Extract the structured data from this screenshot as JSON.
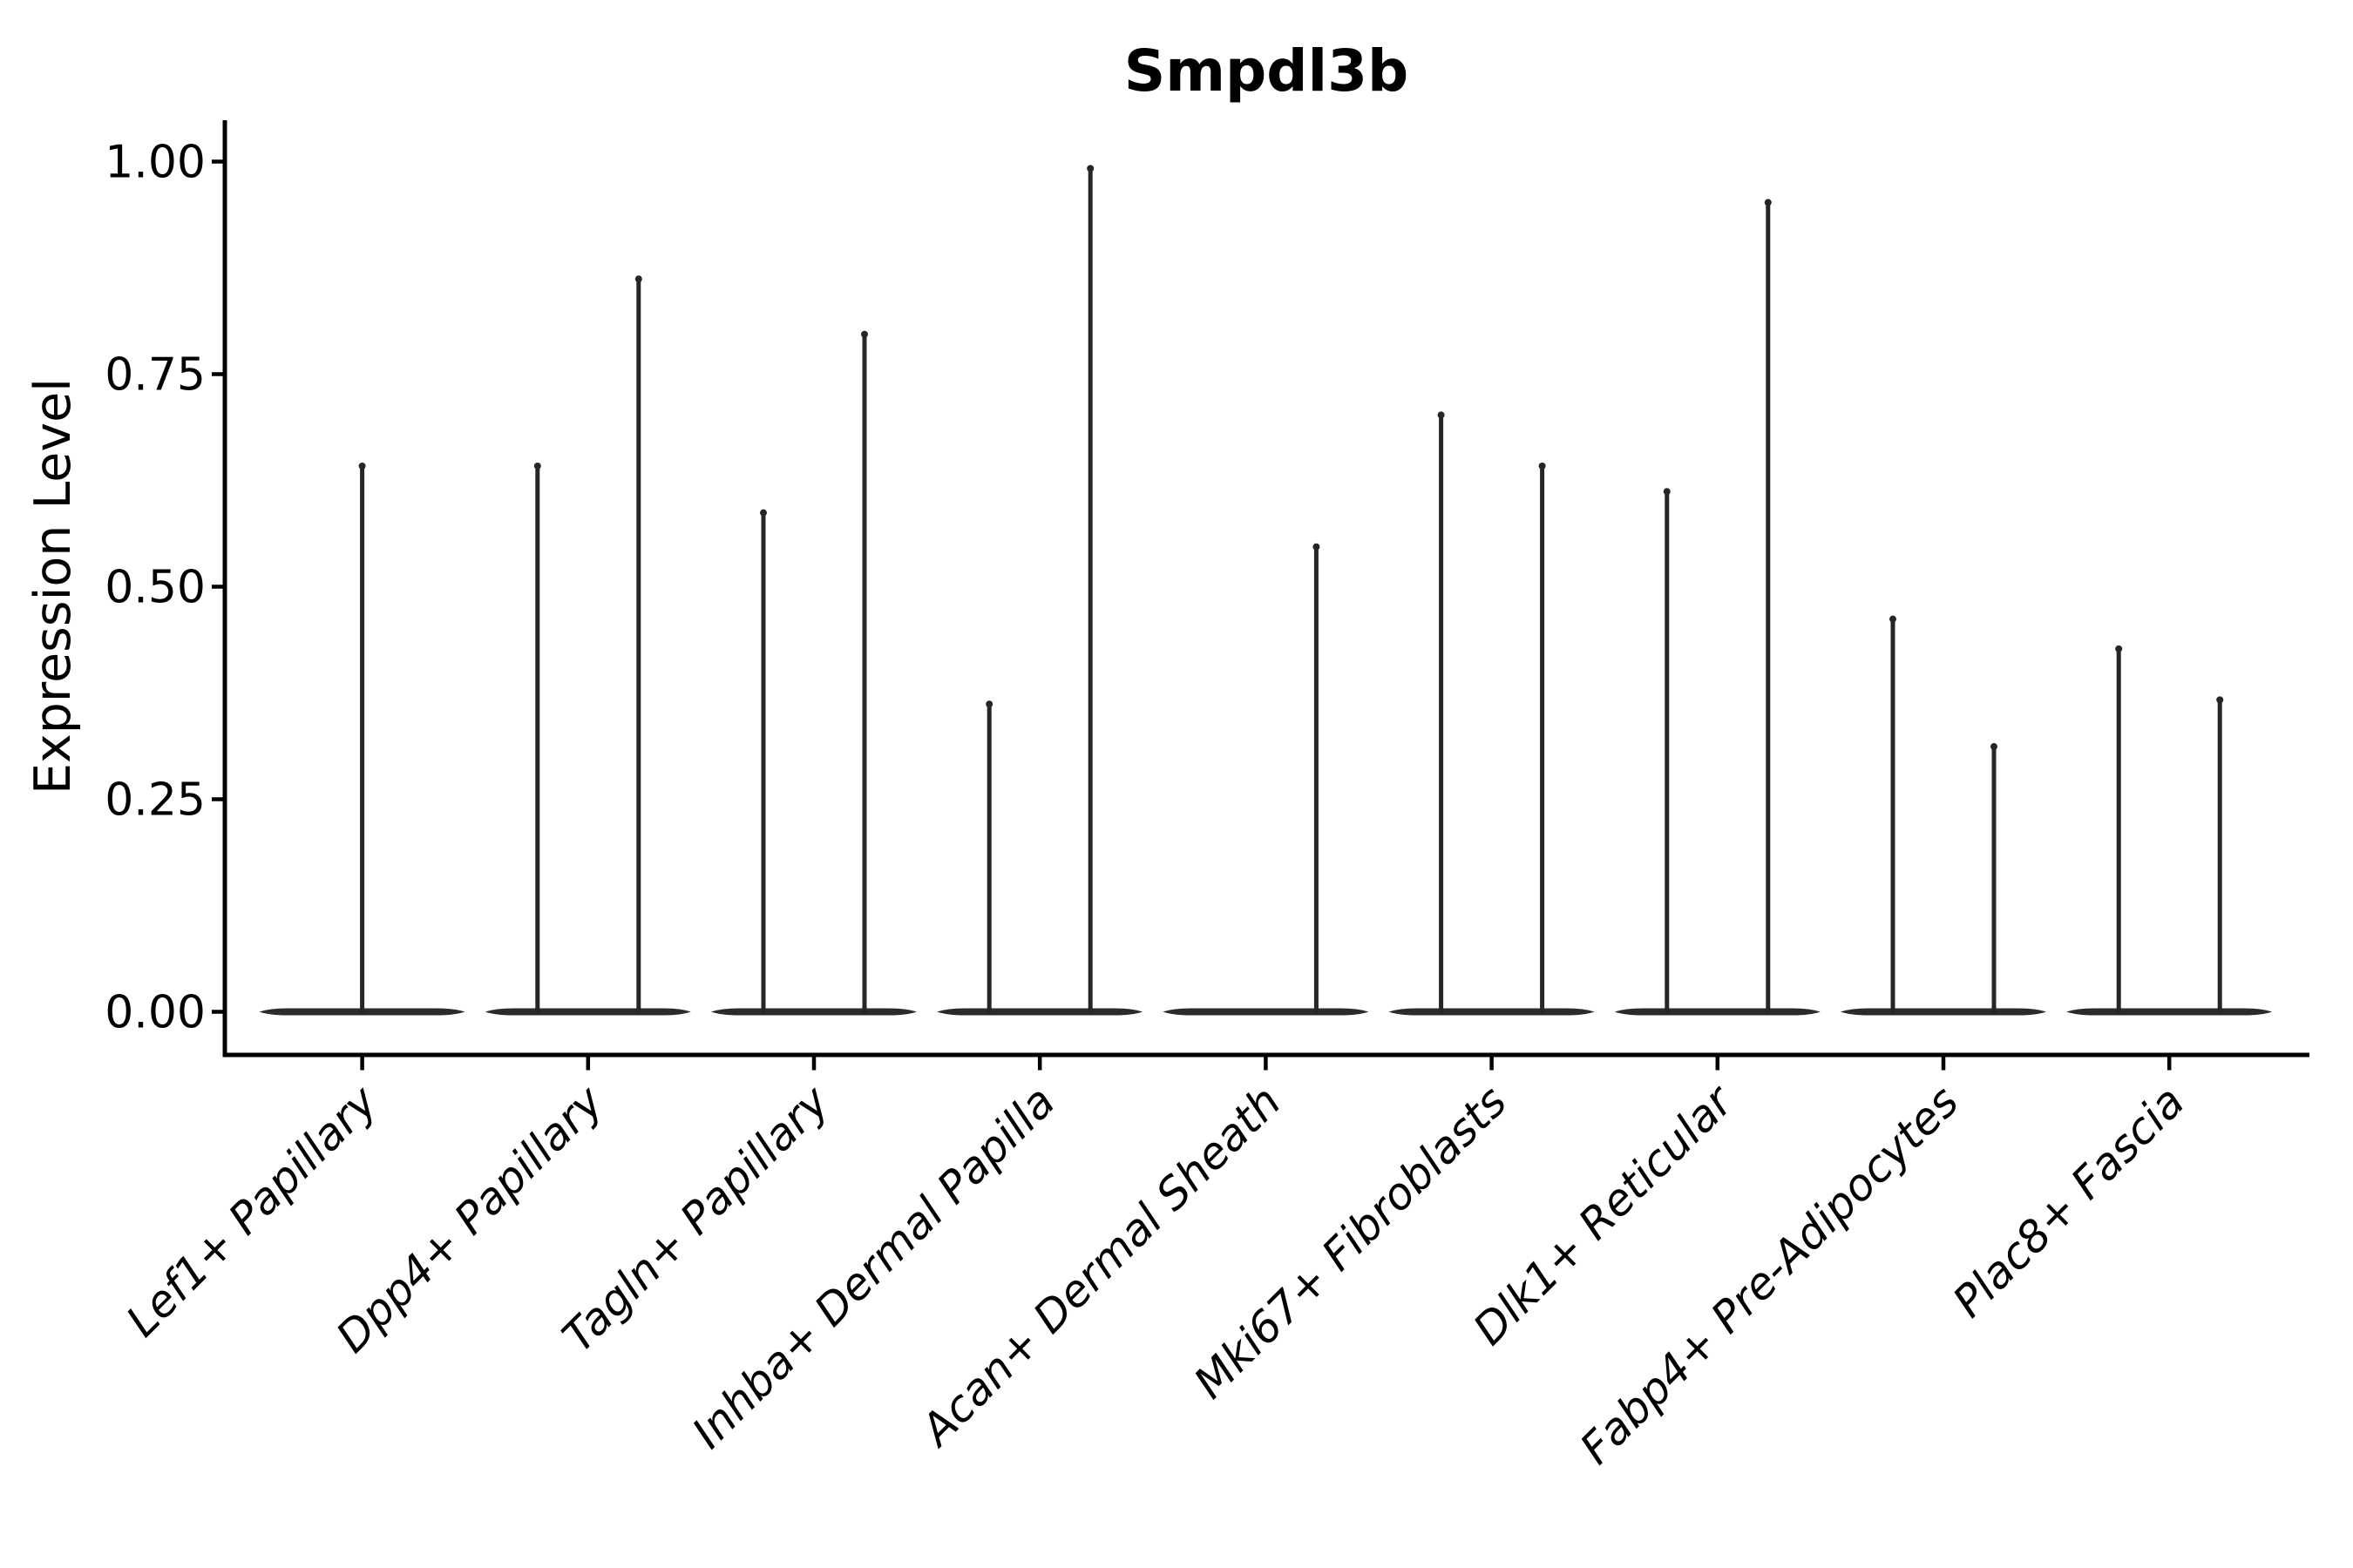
{
  "chart_data": {
    "type": "violin",
    "title": "Smpdl3b",
    "ylabel": "Expression Level",
    "xlabel": "",
    "ylim": [
      0,
      1.0
    ],
    "ytick_values": [
      0,
      0.25,
      0.5,
      0.75,
      1.0
    ],
    "ytick_labels": [
      "0.00",
      "0.25",
      "0.50",
      "0.75",
      "1.00"
    ],
    "categories": [
      "Lef1+ Papillary",
      "Dpp4+ Papillary",
      "Tagln+ Papillary",
      "Inhba+ Dermal Papilla",
      "Acan+ Dermal Sheath",
      "Mki67+ Fibroblasts",
      "Dlk1+ Reticular",
      "Fabp4+ Pre-Adipocytes",
      "Plac8+ Fascia"
    ],
    "violins": [
      {
        "category": "Lef1+ Papillary",
        "baseline_value": 0,
        "spikes": [
          {
            "group": "center",
            "max": 0.645
          }
        ]
      },
      {
        "category": "Dpp4+ Papillary",
        "baseline_value": 0,
        "spikes": [
          {
            "group": "left",
            "max": 0.645
          },
          {
            "group": "right",
            "max": 0.865
          }
        ]
      },
      {
        "category": "Tagln+ Papillary",
        "baseline_value": 0,
        "spikes": [
          {
            "group": "left",
            "max": 0.59
          },
          {
            "group": "right",
            "max": 0.8
          }
        ]
      },
      {
        "category": "Inhba+ Dermal Papilla",
        "baseline_value": 0,
        "spikes": [
          {
            "group": "left",
            "max": 0.365
          },
          {
            "group": "right",
            "max": 0.995
          }
        ]
      },
      {
        "category": "Acan+ Dermal Sheath",
        "baseline_value": 0,
        "spikes": [
          {
            "group": "right",
            "max": 0.55
          }
        ]
      },
      {
        "category": "Mki67+ Fibroblasts",
        "baseline_value": 0,
        "spikes": [
          {
            "group": "left",
            "max": 0.705
          },
          {
            "group": "right",
            "max": 0.645
          }
        ]
      },
      {
        "category": "Dlk1+ Reticular",
        "baseline_value": 0,
        "spikes": [
          {
            "group": "left",
            "max": 0.615
          },
          {
            "group": "right",
            "max": 0.955
          }
        ]
      },
      {
        "category": "Fabp4+ Pre-Adipocytes",
        "baseline_value": 0,
        "spikes": [
          {
            "group": "left",
            "max": 0.465
          },
          {
            "group": "right",
            "max": 0.315
          }
        ]
      },
      {
        "category": "Plac8+ Fascia",
        "baseline_value": 0,
        "spikes": [
          {
            "group": "left",
            "max": 0.43
          },
          {
            "group": "right",
            "max": 0.37
          }
        ]
      }
    ],
    "legend": "none",
    "grid": false,
    "colors": {
      "background": "#ffffff",
      "axis": "#000000",
      "text": "#000000",
      "violin_outline": "#262626",
      "violin_baseline": "#2b2b2b"
    }
  }
}
